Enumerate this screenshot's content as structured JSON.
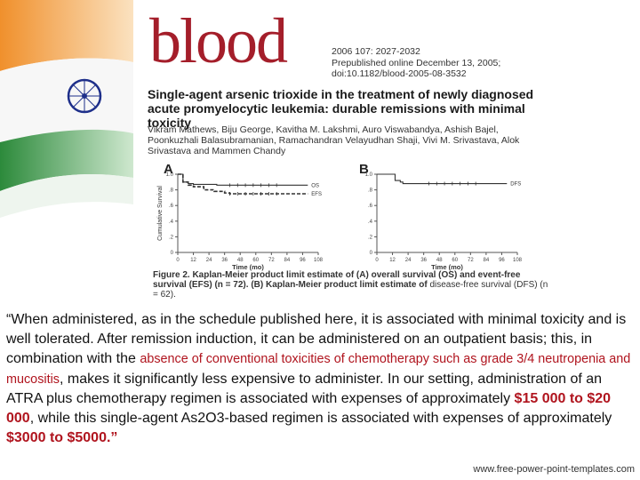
{
  "paper": {
    "logo_text": "blood",
    "citation_lines": [
      "2006 107: 2027-2032",
      "Prepublished online December 13, 2005;",
      "doi:10.1182/blood-2005-08-3532"
    ],
    "title": "Single-agent arsenic trioxide in the treatment of newly diagnosed acute promyelocytic leukemia: durable remissions with minimal toxicity",
    "authors": "Vikram Mathews, Biju George, Kavitha M. Lakshmi, Auro Viswabandya, Ashish Bajel, Poonkuzhali Balasubramanian, Ramachandran Velayudhan Shaji, Vivi M. Srivastava, Alok Srivastava and Mammen Chandy",
    "caption_bold": "Figure 2. Kaplan-Meier product limit estimate of (A) overall survival (OS) and event-free survival (EFS) (n = 72). (B) Kaplan-Meier product limit estimate of",
    "caption_rest": "disease-free survival (DFS) (n = 62)."
  },
  "chart_data": [
    {
      "type": "line",
      "panel": "A",
      "ylabel": "Cumulative Survival",
      "xlabel": "Time (mo)",
      "xlim": [
        0,
        108
      ],
      "ylim": [
        0,
        1.0
      ],
      "x_ticks": [
        "0",
        "12",
        "24",
        "36",
        "48",
        "60",
        "72",
        "84",
        "96",
        "108"
      ],
      "y_ticks": [
        "0",
        ".2",
        ".4",
        ".6",
        ".8",
        "1.0"
      ],
      "series": [
        {
          "name": "OS",
          "color": "#333333",
          "dash": false,
          "x": [
            0,
            4,
            8,
            12,
            30,
            36,
            60,
            100
          ],
          "y": [
            1.0,
            0.9,
            0.88,
            0.87,
            0.86,
            0.86,
            0.86,
            0.86
          ]
        },
        {
          "name": "EFS",
          "color": "#333333",
          "dash": true,
          "x": [
            0,
            4,
            8,
            12,
            20,
            28,
            36,
            40,
            60,
            100
          ],
          "y": [
            1.0,
            0.9,
            0.86,
            0.84,
            0.8,
            0.78,
            0.76,
            0.75,
            0.75,
            0.75
          ]
        }
      ]
    },
    {
      "type": "line",
      "panel": "B",
      "xlabel": "Time (mo)",
      "xlim": [
        0,
        108
      ],
      "ylim": [
        0,
        1.0
      ],
      "x_ticks": [
        "0",
        "12",
        "24",
        "36",
        "48",
        "60",
        "72",
        "84",
        "96",
        "108"
      ],
      "y_ticks": [
        "0",
        ".2",
        ".4",
        ".6",
        ".8",
        "1.0"
      ],
      "series": [
        {
          "name": "DFS",
          "color": "#333333",
          "dash": false,
          "x": [
            0,
            10,
            14,
            18,
            20,
            100
          ],
          "y": [
            1.0,
            1.0,
            0.92,
            0.9,
            0.88,
            0.88
          ]
        }
      ]
    }
  ],
  "quote": {
    "part1": "“When administered, as in the schedule published here, it is associated with minimal toxicity and is well tolerated. After remission induction, it can be administered on an outpatient basis; this, in combination with the ",
    "highlight": "absence of conventional toxicities of chemotherapy such as grade 3/4 neutropenia and mucositis",
    "part2": ", makes it significantly less expensive to administer. In our setting, administration of an ATRA plus chemotherapy regimen is associated with expenses of approximately ",
    "money1": "$15 000 to $20 000",
    "part3": ", while this single-agent As2O3-based regimen is associated with expenses of approximately ",
    "money2": "$3000 to $5000",
    "end": ".”"
  },
  "footer": "www.free-power-point-templates.com",
  "colors": {
    "accent_red": "#b0141e",
    "logo_red": "#a41e2a",
    "saffron": "#f2a23a",
    "green": "#2e8b3a",
    "chakra": "#1e2f8a"
  }
}
